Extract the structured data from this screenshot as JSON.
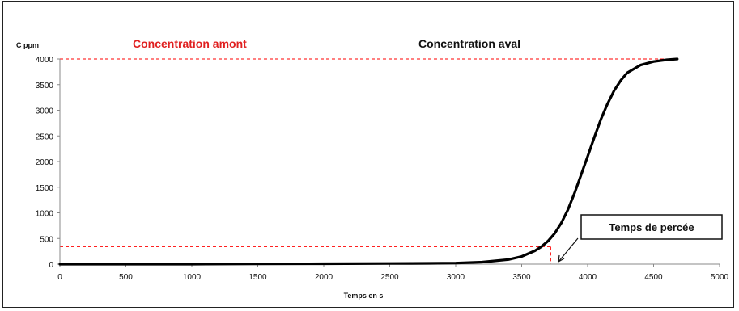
{
  "chart_data": {
    "type": "line",
    "ylabel": "C ppm",
    "xlabel": "Temps en s",
    "xlim": [
      0,
      5000
    ],
    "ylim": [
      0,
      4000
    ],
    "x_ticks": [
      "0",
      "500",
      "1000",
      "1500",
      "2000",
      "2500",
      "3000",
      "3500",
      "4000",
      "4500",
      "5000"
    ],
    "y_ticks": [
      "0",
      "500",
      "1000",
      "1500",
      "2000",
      "2500",
      "3000",
      "3500",
      "4000"
    ],
    "grid": false,
    "series": [
      {
        "x": [
          0,
          500,
          1000,
          1500,
          2000,
          2500,
          2800,
          3000,
          3200,
          3400,
          3500,
          3600,
          3650,
          3700,
          3750,
          3800,
          3850,
          3900,
          3950,
          4000,
          4050,
          4100,
          4150,
          4200,
          4250,
          4300,
          4400,
          4500,
          4600,
          4680
        ],
        "y": [
          0,
          0,
          0,
          5,
          8,
          12,
          15,
          20,
          40,
          90,
          150,
          260,
          340,
          450,
          600,
          800,
          1060,
          1380,
          1740,
          2100,
          2470,
          2820,
          3120,
          3380,
          3580,
          3730,
          3880,
          3950,
          3985,
          4000
        ],
        "color": "#000000"
      }
    ],
    "reference_lines": {
      "upstream_level": 4000,
      "breakthrough_level": 340,
      "breakthrough_time": 3720,
      "color": "#ff0000"
    },
    "annotations": {
      "upstream": "Concentration amont",
      "downstream": "Concentration aval",
      "breakthrough": "Temps de percée"
    }
  }
}
